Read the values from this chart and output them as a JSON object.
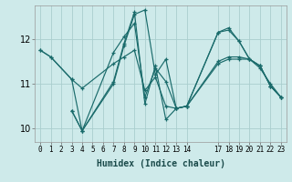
{
  "xlabel": "Humidex (Indice chaleur)",
  "background_color": "#ceeaea",
  "grid_color": "#aacece",
  "line_color": "#1a6b6b",
  "xlim": [
    -0.5,
    23.5
  ],
  "ylim": [
    9.7,
    12.75
  ],
  "yticks": [
    10,
    11,
    12
  ],
  "xtick_positions": [
    0,
    1,
    2,
    3,
    4,
    5,
    6,
    7,
    8,
    9,
    10,
    11,
    12,
    13,
    14,
    17,
    18,
    19,
    20,
    21,
    22,
    23
  ],
  "xtick_labels": [
    "0",
    "1",
    "2",
    "3",
    "4",
    "5",
    "6",
    "7",
    "8",
    "9",
    "10",
    "11",
    "12",
    "13",
    "14",
    "17",
    "18",
    "19",
    "20",
    "21",
    "22",
    "23"
  ],
  "series": [
    {
      "x": [
        0,
        1,
        3,
        4,
        7,
        8,
        9,
        10,
        11,
        12,
        13,
        14,
        17,
        18,
        19,
        20,
        21,
        22,
        23
      ],
      "y": [
        11.75,
        11.6,
        11.1,
        9.95,
        11.7,
        12.05,
        12.35,
        10.7,
        11.35,
        11.05,
        10.45,
        10.5,
        12.15,
        12.2,
        11.95,
        11.55,
        11.4,
        10.95,
        10.7
      ]
    },
    {
      "x": [
        0,
        1,
        3,
        4,
        7,
        8,
        9,
        10,
        11,
        12,
        13,
        14,
        17,
        18,
        19,
        20,
        21,
        22,
        23
      ],
      "y": [
        11.75,
        11.6,
        11.1,
        10.9,
        11.45,
        11.6,
        11.75,
        10.85,
        11.15,
        10.5,
        10.45,
        10.5,
        11.45,
        11.55,
        11.55,
        11.55,
        11.35,
        11.0,
        10.7
      ]
    },
    {
      "x": [
        3,
        4,
        7,
        8,
        9,
        10,
        11,
        12,
        13,
        14,
        17,
        18,
        19,
        20,
        21,
        22,
        23
      ],
      "y": [
        10.4,
        9.95,
        11.0,
        11.85,
        12.55,
        12.65,
        11.2,
        11.55,
        10.45,
        10.5,
        11.5,
        11.6,
        11.6,
        11.55,
        11.4,
        10.95,
        10.7
      ]
    },
    {
      "x": [
        3,
        4,
        7,
        8,
        9,
        10,
        11,
        12,
        13,
        14,
        17,
        18,
        19,
        20,
        21,
        22,
        23
      ],
      "y": [
        10.4,
        9.95,
        11.05,
        11.9,
        12.6,
        10.55,
        11.4,
        10.2,
        10.45,
        10.5,
        12.15,
        12.25,
        11.95,
        11.55,
        11.4,
        10.95,
        10.7
      ]
    }
  ]
}
